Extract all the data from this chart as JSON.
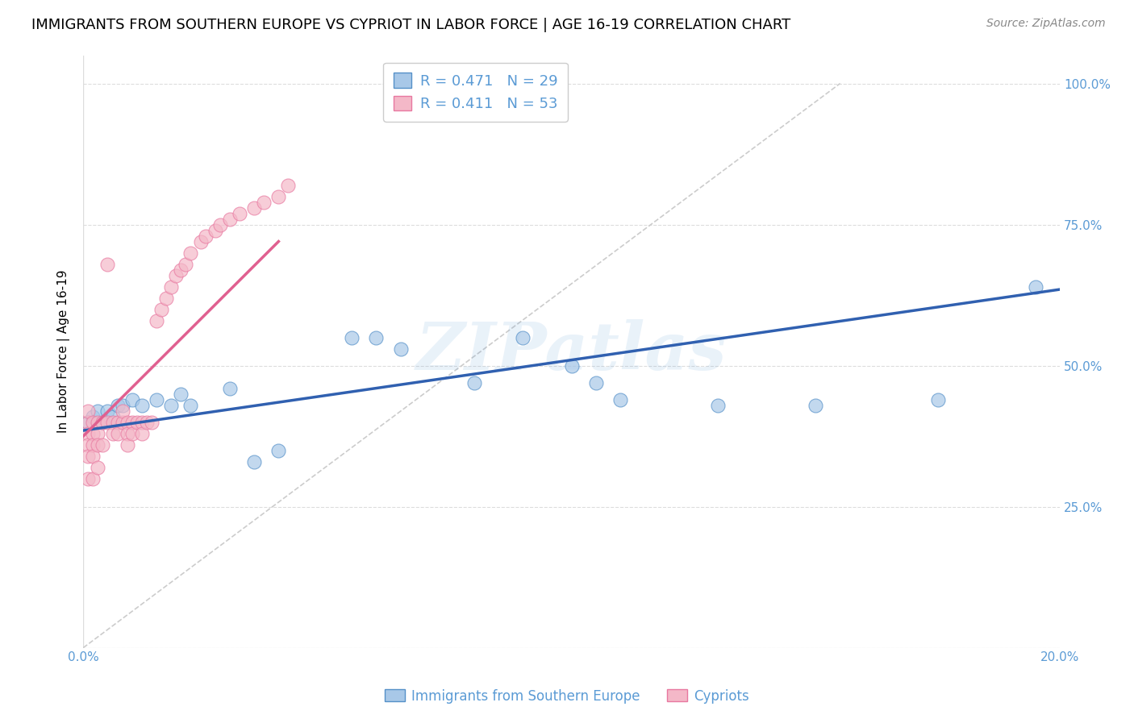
{
  "title": "IMMIGRANTS FROM SOUTHERN EUROPE VS CYPRIOT IN LABOR FORCE | AGE 16-19 CORRELATION CHART",
  "source": "Source: ZipAtlas.com",
  "ylabel": "In Labor Force | Age 16-19",
  "xmin": 0.0,
  "xmax": 0.2,
  "ymin": 0.0,
  "ymax": 1.05,
  "yticks": [
    0.0,
    0.25,
    0.5,
    0.75,
    1.0
  ],
  "ytick_labels": [
    "",
    "25.0%",
    "50.0%",
    "75.0%",
    "100.0%"
  ],
  "xticks": [
    0.0,
    0.05,
    0.1,
    0.15,
    0.2
  ],
  "xtick_labels": [
    "0.0%",
    "",
    "",
    "",
    "20.0%"
  ],
  "legend_label1": "Immigrants from Southern Europe",
  "legend_label2": "Cypriots",
  "blue_color": "#a8c8e8",
  "pink_color": "#f4b8c8",
  "blue_edge_color": "#5590c8",
  "pink_edge_color": "#e878a0",
  "blue_line_color": "#3060b0",
  "pink_line_color": "#e06090",
  "blue_scatter_x": [
    0.001,
    0.002,
    0.003,
    0.004,
    0.005,
    0.006,
    0.007,
    0.008,
    0.01,
    0.012,
    0.015,
    0.018,
    0.02,
    0.022,
    0.03,
    0.035,
    0.04,
    0.055,
    0.06,
    0.065,
    0.08,
    0.09,
    0.1,
    0.105,
    0.11,
    0.13,
    0.15,
    0.175,
    0.195
  ],
  "blue_scatter_y": [
    0.4,
    0.41,
    0.42,
    0.4,
    0.42,
    0.41,
    0.43,
    0.43,
    0.44,
    0.43,
    0.44,
    0.43,
    0.45,
    0.43,
    0.46,
    0.33,
    0.35,
    0.55,
    0.55,
    0.53,
    0.47,
    0.55,
    0.5,
    0.47,
    0.44,
    0.43,
    0.43,
    0.44,
    0.64
  ],
  "pink_scatter_x": [
    0.001,
    0.001,
    0.001,
    0.001,
    0.001,
    0.001,
    0.002,
    0.002,
    0.002,
    0.002,
    0.002,
    0.003,
    0.003,
    0.003,
    0.003,
    0.004,
    0.004,
    0.005,
    0.005,
    0.006,
    0.006,
    0.007,
    0.007,
    0.008,
    0.008,
    0.009,
    0.009,
    0.009,
    0.01,
    0.01,
    0.011,
    0.012,
    0.012,
    0.013,
    0.014,
    0.015,
    0.016,
    0.017,
    0.018,
    0.019,
    0.02,
    0.021,
    0.022,
    0.024,
    0.025,
    0.027,
    0.028,
    0.03,
    0.032,
    0.035,
    0.037,
    0.04,
    0.042
  ],
  "pink_scatter_y": [
    0.4,
    0.38,
    0.42,
    0.36,
    0.34,
    0.3,
    0.4,
    0.38,
    0.36,
    0.34,
    0.3,
    0.4,
    0.38,
    0.36,
    0.32,
    0.4,
    0.36,
    0.68,
    0.4,
    0.4,
    0.38,
    0.4,
    0.38,
    0.4,
    0.42,
    0.4,
    0.38,
    0.36,
    0.4,
    0.38,
    0.4,
    0.4,
    0.38,
    0.4,
    0.4,
    0.58,
    0.6,
    0.62,
    0.64,
    0.66,
    0.67,
    0.68,
    0.7,
    0.72,
    0.73,
    0.74,
    0.75,
    0.76,
    0.77,
    0.78,
    0.79,
    0.8,
    0.82
  ],
  "blue_trend_x": [
    0.0,
    0.2
  ],
  "blue_trend_y": [
    0.385,
    0.635
  ],
  "pink_trend_x": [
    0.0,
    0.04
  ],
  "pink_trend_y": [
    0.375,
    0.72
  ],
  "ref_line_x": [
    0.0,
    0.155
  ],
  "ref_line_y": [
    0.0,
    1.0
  ],
  "watermark": "ZIPatlas",
  "title_fontsize": 13,
  "axis_label_fontsize": 11,
  "tick_fontsize": 11,
  "legend_fontsize": 12,
  "source_fontsize": 10
}
